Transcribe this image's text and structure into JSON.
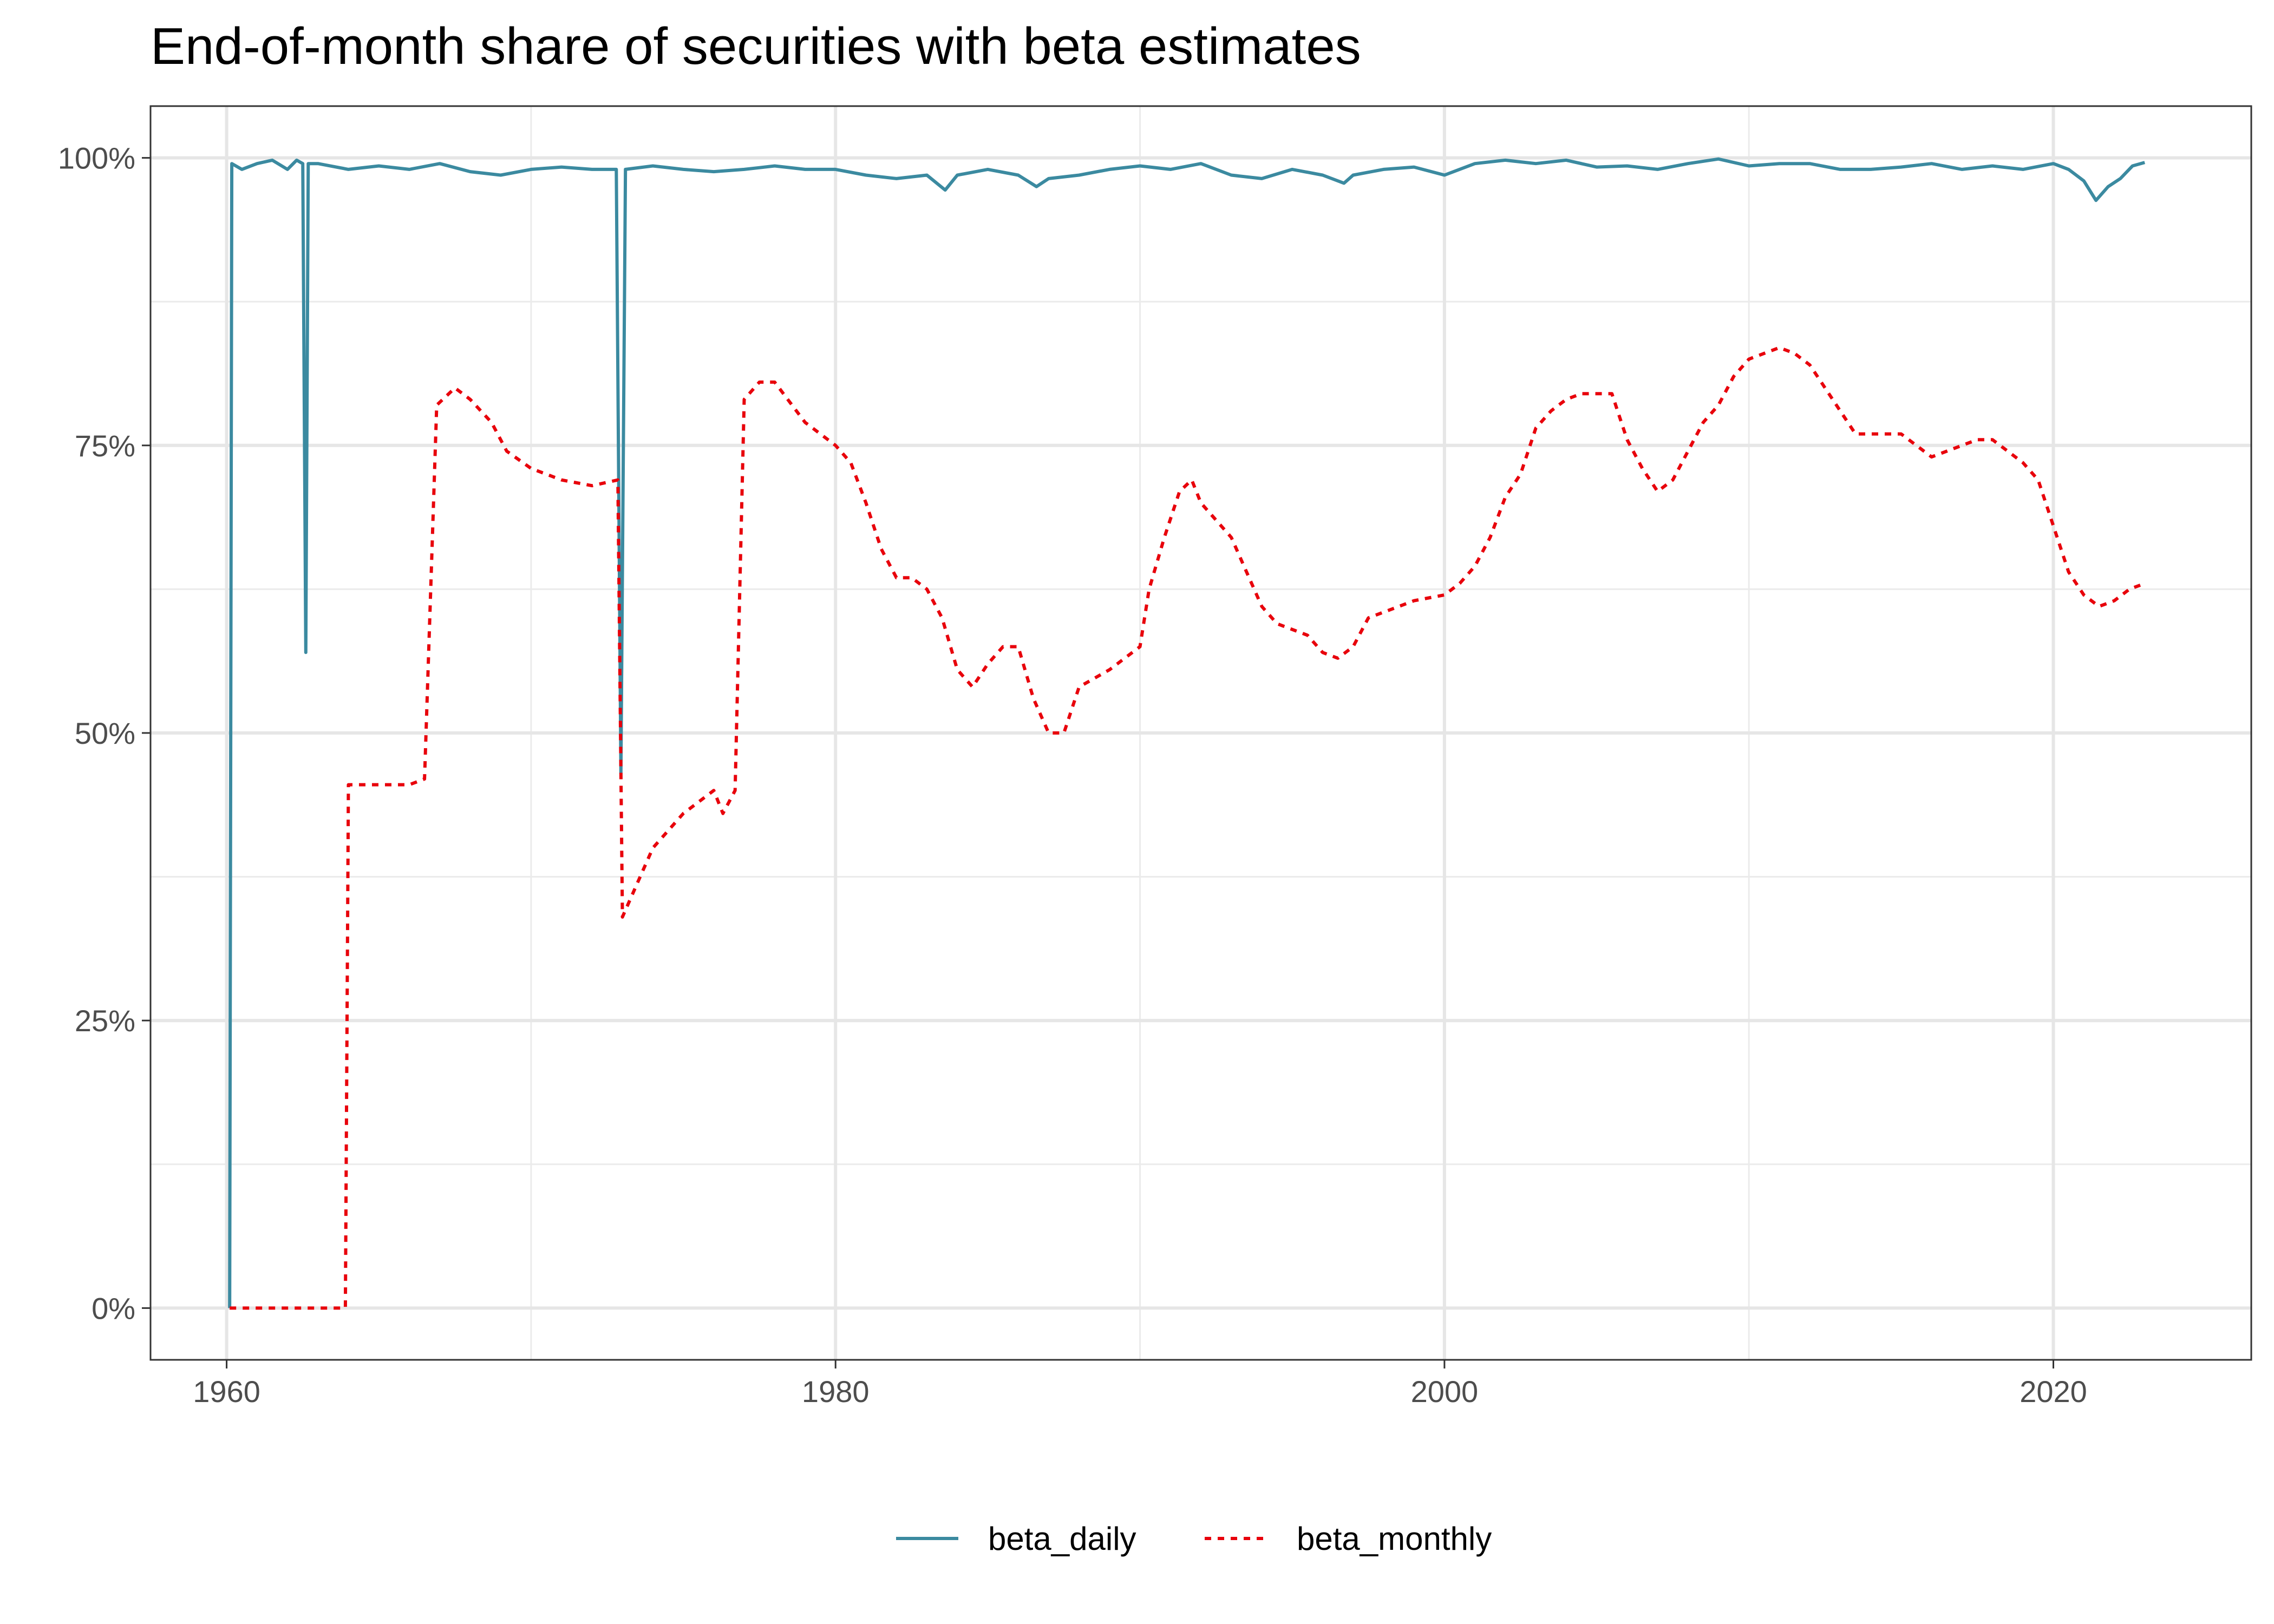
{
  "chart_data": {
    "type": "line",
    "title": "End-of-month share of securities with beta estimates",
    "xlabel": "",
    "ylabel": "",
    "xlim": [
      1957.5,
      2026.5
    ],
    "ylim": [
      -0.045,
      1.045
    ],
    "x_ticks": [
      1960,
      1980,
      2000,
      2020
    ],
    "x_tick_labels": [
      "1960",
      "1980",
      "2000",
      "2020"
    ],
    "x_minor_ticks": [
      1970,
      1990,
      2010
    ],
    "y_ticks": [
      0,
      0.25,
      0.5,
      0.75,
      1.0
    ],
    "y_tick_labels": [
      "0%",
      "25%",
      "50%",
      "75%",
      "100%"
    ],
    "y_minor_ticks": [
      0.125,
      0.375,
      0.625,
      0.875
    ],
    "grid": true,
    "legend_position": "bottom",
    "series": [
      {
        "name": "beta_daily",
        "color": "#3B8AA0",
        "line_style": "solid",
        "points": [
          [
            1960.1,
            0.0
          ],
          [
            1960.17,
            0.995
          ],
          [
            1960.5,
            0.99
          ],
          [
            1961,
            0.995
          ],
          [
            1961.5,
            0.998
          ],
          [
            1962,
            0.99
          ],
          [
            1962.3,
            0.998
          ],
          [
            1962.5,
            0.995
          ],
          [
            1962.6,
            0.57
          ],
          [
            1962.68,
            0.995
          ],
          [
            1963,
            0.995
          ],
          [
            1964,
            0.99
          ],
          [
            1965,
            0.993
          ],
          [
            1966,
            0.99
          ],
          [
            1967,
            0.995
          ],
          [
            1968,
            0.988
          ],
          [
            1969,
            0.985
          ],
          [
            1970,
            0.99
          ],
          [
            1971,
            0.992
          ],
          [
            1972,
            0.99
          ],
          [
            1972.8,
            0.99
          ],
          [
            1972.95,
            0.465
          ],
          [
            1973.1,
            0.99
          ],
          [
            1974,
            0.993
          ],
          [
            1975,
            0.99
          ],
          [
            1976,
            0.988
          ],
          [
            1977,
            0.99
          ],
          [
            1978,
            0.993
          ],
          [
            1979,
            0.99
          ],
          [
            1980,
            0.99
          ],
          [
            1981,
            0.985
          ],
          [
            1982,
            0.982
          ],
          [
            1983,
            0.985
          ],
          [
            1983.6,
            0.972
          ],
          [
            1984,
            0.985
          ],
          [
            1985,
            0.99
          ],
          [
            1986,
            0.985
          ],
          [
            1986.6,
            0.975
          ],
          [
            1987,
            0.982
          ],
          [
            1988,
            0.985
          ],
          [
            1989,
            0.99
          ],
          [
            1990,
            0.993
          ],
          [
            1991,
            0.99
          ],
          [
            1992,
            0.995
          ],
          [
            1993,
            0.985
          ],
          [
            1994,
            0.982
          ],
          [
            1995,
            0.99
          ],
          [
            1996,
            0.985
          ],
          [
            1996.7,
            0.978
          ],
          [
            1997,
            0.985
          ],
          [
            1998,
            0.99
          ],
          [
            1999,
            0.992
          ],
          [
            2000,
            0.985
          ],
          [
            2001,
            0.995
          ],
          [
            2002,
            0.998
          ],
          [
            2003,
            0.995
          ],
          [
            2004,
            0.998
          ],
          [
            2005,
            0.992
          ],
          [
            2006,
            0.993
          ],
          [
            2007,
            0.99
          ],
          [
            2008,
            0.995
          ],
          [
            2009,
            0.999
          ],
          [
            2010,
            0.993
          ],
          [
            2011,
            0.995
          ],
          [
            2012,
            0.995
          ],
          [
            2013,
            0.99
          ],
          [
            2014,
            0.99
          ],
          [
            2015,
            0.992
          ],
          [
            2016,
            0.995
          ],
          [
            2017,
            0.99
          ],
          [
            2018,
            0.993
          ],
          [
            2019,
            0.99
          ],
          [
            2020,
            0.995
          ],
          [
            2020.5,
            0.99
          ],
          [
            2021,
            0.98
          ],
          [
            2021.4,
            0.963
          ],
          [
            2021.8,
            0.975
          ],
          [
            2022.2,
            0.982
          ],
          [
            2022.6,
            0.993
          ],
          [
            2023,
            0.996
          ]
        ]
      },
      {
        "name": "beta_monthly",
        "color": "#E8000B",
        "line_style": "dashed",
        "points": [
          [
            1960.1,
            0.0
          ],
          [
            1963.9,
            0.0
          ],
          [
            1964.0,
            0.455
          ],
          [
            1965,
            0.455
          ],
          [
            1966,
            0.455
          ],
          [
            1966.5,
            0.46
          ],
          [
            1966.9,
            0.785
          ],
          [
            1967.5,
            0.8
          ],
          [
            1968,
            0.79
          ],
          [
            1968.7,
            0.77
          ],
          [
            1969.2,
            0.745
          ],
          [
            1970,
            0.73
          ],
          [
            1970.5,
            0.725
          ],
          [
            1971,
            0.72
          ],
          [
            1972,
            0.715
          ],
          [
            1972.85,
            0.72
          ],
          [
            1973.0,
            0.34
          ],
          [
            1973.5,
            0.37
          ],
          [
            1974,
            0.4
          ],
          [
            1975,
            0.43
          ],
          [
            1976,
            0.45
          ],
          [
            1976.3,
            0.43
          ],
          [
            1976.7,
            0.45
          ],
          [
            1977,
            0.79
          ],
          [
            1977.5,
            0.805
          ],
          [
            1978,
            0.805
          ],
          [
            1979,
            0.77
          ],
          [
            1980,
            0.75
          ],
          [
            1980.5,
            0.735
          ],
          [
            1981,
            0.7
          ],
          [
            1981.5,
            0.66
          ],
          [
            1982,
            0.635
          ],
          [
            1982.5,
            0.635
          ],
          [
            1983,
            0.625
          ],
          [
            1983.5,
            0.6
          ],
          [
            1984,
            0.555
          ],
          [
            1984.5,
            0.54
          ],
          [
            1985,
            0.56
          ],
          [
            1985.5,
            0.575
          ],
          [
            1986,
            0.575
          ],
          [
            1986.5,
            0.53
          ],
          [
            1987,
            0.5
          ],
          [
            1987.5,
            0.5
          ],
          [
            1988,
            0.54
          ],
          [
            1989,
            0.555
          ],
          [
            1990,
            0.575
          ],
          [
            1990.3,
            0.625
          ],
          [
            1990.8,
            0.67
          ],
          [
            1991.3,
            0.71
          ],
          [
            1991.7,
            0.72
          ],
          [
            1992,
            0.7
          ],
          [
            1992.5,
            0.685
          ],
          [
            1993,
            0.67
          ],
          [
            1993.5,
            0.64
          ],
          [
            1994,
            0.61
          ],
          [
            1994.5,
            0.595
          ],
          [
            1995,
            0.59
          ],
          [
            1995.5,
            0.585
          ],
          [
            1996,
            0.57
          ],
          [
            1996.5,
            0.565
          ],
          [
            1997,
            0.575
          ],
          [
            1997.5,
            0.6
          ],
          [
            1998,
            0.605
          ],
          [
            1998.5,
            0.61
          ],
          [
            1999,
            0.615
          ],
          [
            2000,
            0.62
          ],
          [
            2000.5,
            0.63
          ],
          [
            2001,
            0.645
          ],
          [
            2001.5,
            0.67
          ],
          [
            2002,
            0.705
          ],
          [
            2002.5,
            0.725
          ],
          [
            2003,
            0.765
          ],
          [
            2003.5,
            0.78
          ],
          [
            2004,
            0.79
          ],
          [
            2004.5,
            0.795
          ],
          [
            2005,
            0.795
          ],
          [
            2005.5,
            0.795
          ],
          [
            2006,
            0.755
          ],
          [
            2006.5,
            0.73
          ],
          [
            2007,
            0.71
          ],
          [
            2007.5,
            0.72
          ],
          [
            2008,
            0.745
          ],
          [
            2008.5,
            0.77
          ],
          [
            2009,
            0.785
          ],
          [
            2009.5,
            0.81
          ],
          [
            2010,
            0.825
          ],
          [
            2010.5,
            0.83
          ],
          [
            2011,
            0.835
          ],
          [
            2011.5,
            0.83
          ],
          [
            2012,
            0.82
          ],
          [
            2012.5,
            0.8
          ],
          [
            2013,
            0.78
          ],
          [
            2013.5,
            0.76
          ],
          [
            2014,
            0.76
          ],
          [
            2014.5,
            0.76
          ],
          [
            2015,
            0.76
          ],
          [
            2015.5,
            0.75
          ],
          [
            2016,
            0.74
          ],
          [
            2016.5,
            0.745
          ],
          [
            2017,
            0.75
          ],
          [
            2017.5,
            0.755
          ],
          [
            2018,
            0.755
          ],
          [
            2018.5,
            0.745
          ],
          [
            2019,
            0.735
          ],
          [
            2019.5,
            0.72
          ],
          [
            2020,
            0.68
          ],
          [
            2020.5,
            0.64
          ],
          [
            2021,
            0.62
          ],
          [
            2021.5,
            0.61
          ],
          [
            2022,
            0.615
          ],
          [
            2022.5,
            0.625
          ],
          [
            2023,
            0.63
          ]
        ]
      }
    ]
  }
}
